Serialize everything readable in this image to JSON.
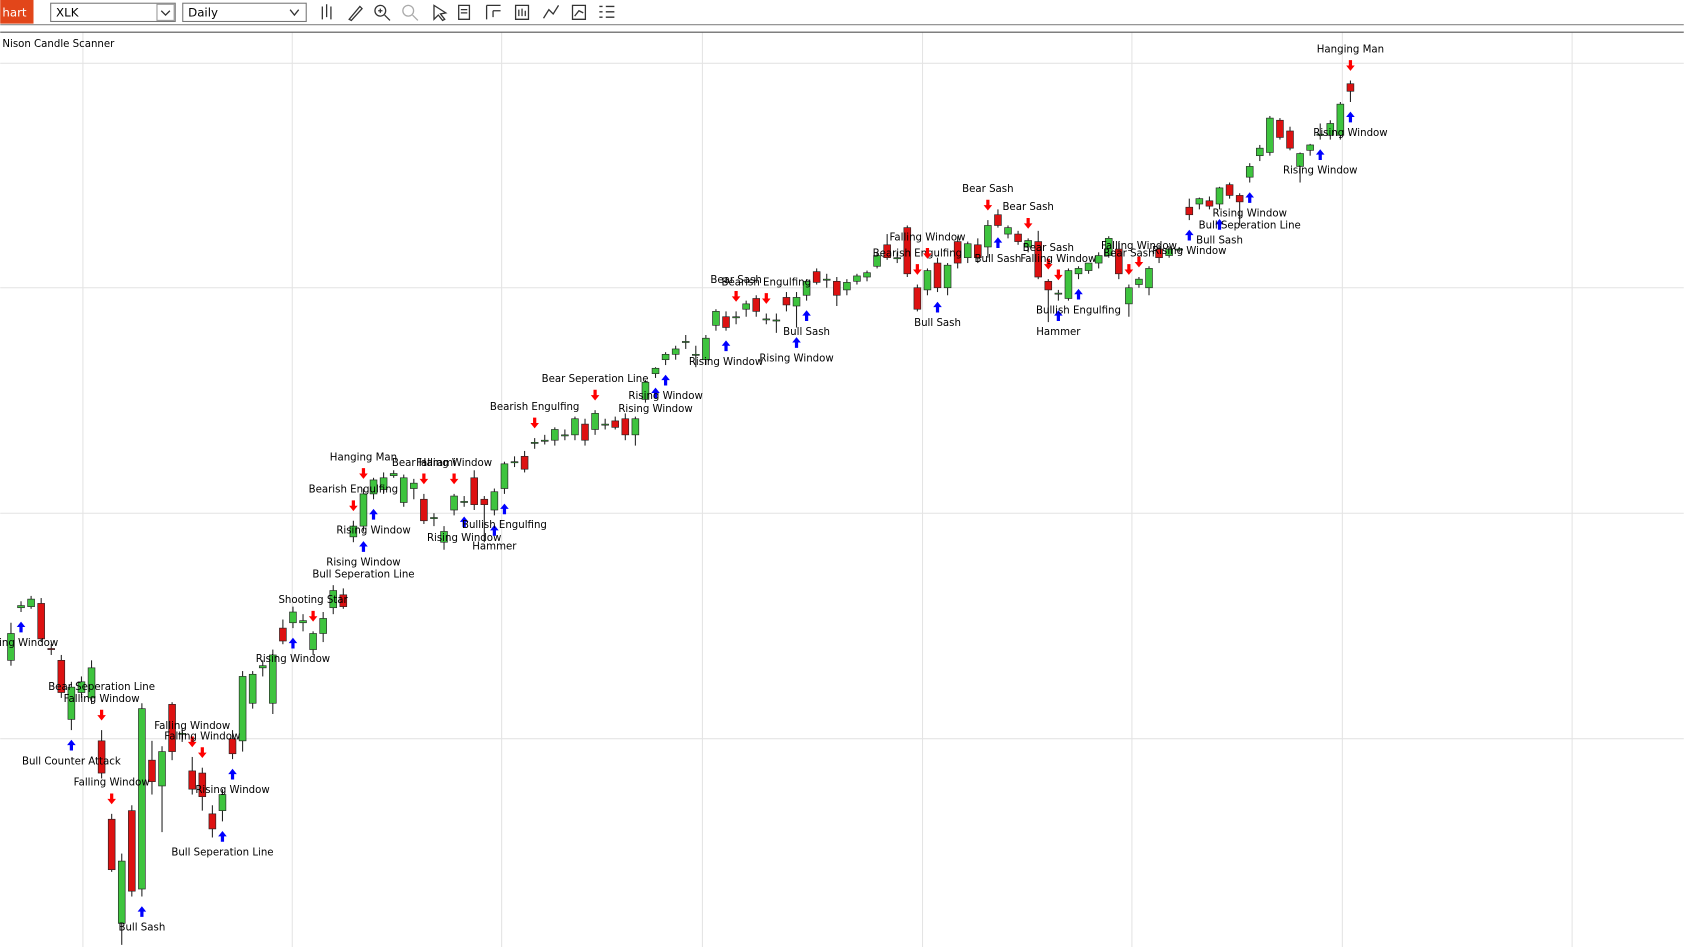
{
  "toolbar": {
    "tab": "hart",
    "symbol": "XLK",
    "interval": "Daily"
  },
  "chart_data": {
    "type": "candlestick",
    "title": "Nison Candle Scanner",
    "up_color": "#3ec43e",
    "down_color": "#dd1111",
    "up_arrow_color": "#0000ff",
    "down_arrow_color": "#ff0000",
    "ylim": [
      6.8,
      92
    ],
    "yticks": [
      26.2,
      47.2,
      68.2,
      89.1
    ],
    "grid": true,
    "candles": [
      [
        33.5,
        37.0,
        33.0,
        36.0
      ],
      [
        38.4,
        39.0,
        38.0,
        38.6
      ],
      [
        38.5,
        39.5,
        38.3,
        39.2
      ],
      [
        38.8,
        39.3,
        35.2,
        35.5
      ],
      [
        34.6,
        35.0,
        34.0,
        34.5
      ],
      [
        33.5,
        34.0,
        30.0,
        30.5
      ],
      [
        28.0,
        31.5,
        27.0,
        31.0
      ],
      [
        30.5,
        32.0,
        30.0,
        31.5
      ],
      [
        30.0,
        33.5,
        29.5,
        32.8
      ],
      [
        26.0,
        27.0,
        22.5,
        23.0
      ],
      [
        18.7,
        19.2,
        13.8,
        14.0
      ],
      [
        9.0,
        15.5,
        7.0,
        14.8
      ],
      [
        19.5,
        20.0,
        11.5,
        12.0
      ],
      [
        12.2,
        29.5,
        11.5,
        29.0
      ],
      [
        24.2,
        26.0,
        21.0,
        22.2
      ],
      [
        21.8,
        25.5,
        17.5,
        25.0
      ],
      [
        29.4,
        29.6,
        24.2,
        25.0
      ],
      [
        26.6,
        27.2,
        25.9,
        26.7
      ],
      [
        23.2,
        24.5,
        21.0,
        21.5
      ],
      [
        23.0,
        23.5,
        19.5,
        20.8
      ],
      [
        19.2,
        20.0,
        17.0,
        17.8
      ],
      [
        19.5,
        21.5,
        18.5,
        21.0
      ],
      [
        26.2,
        27.0,
        24.3,
        24.8
      ],
      [
        26.0,
        32.5,
        25.0,
        32.0
      ],
      [
        29.5,
        32.5,
        29.0,
        32.2
      ],
      [
        32.8,
        33.5,
        32.0,
        33.0
      ],
      [
        29.5,
        34.5,
        28.5,
        34.0
      ],
      [
        36.5,
        37.3,
        35.0,
        35.3
      ],
      [
        37.0,
        38.5,
        36.5,
        38.0
      ],
      [
        37.0,
        37.8,
        36.2,
        37.2
      ],
      [
        34.5,
        36.2,
        34.0,
        36.0
      ],
      [
        36.0,
        38.0,
        35.2,
        37.4
      ],
      [
        38.4,
        40.5,
        37.8,
        40.0
      ],
      [
        39.6,
        40.2,
        38.3,
        38.5
      ],
      [
        45.0,
        46.5,
        44.5,
        46.0
      ],
      [
        46.0,
        49.5,
        45.5,
        49.0
      ],
      [
        49.0,
        50.5,
        48.5,
        50.3
      ],
      [
        49.4,
        51.0,
        49.0,
        50.5
      ],
      [
        50.7,
        51.2,
        50.5,
        50.9
      ],
      [
        48.2,
        50.8,
        47.8,
        50.5
      ],
      [
        49.5,
        50.4,
        48.5,
        50.0
      ],
      [
        48.5,
        49.0,
        46.2,
        46.5
      ],
      [
        46.8,
        47.2,
        46.0,
        46.8
      ],
      [
        44.5,
        46.0,
        43.8,
        45.5
      ],
      [
        47.5,
        49.0,
        47.0,
        48.8
      ],
      [
        48.2,
        48.8,
        47.8,
        48.3
      ],
      [
        50.5,
        51.2,
        47.5,
        48.0
      ],
      [
        48.5,
        48.8,
        44.5,
        48.0
      ],
      [
        47.5,
        49.5,
        47.0,
        49.2
      ],
      [
        49.5,
        52.0,
        49.0,
        51.8
      ],
      [
        52.0,
        52.5,
        51.5,
        52.0
      ],
      [
        52.5,
        53.0,
        51.0,
        51.3
      ],
      [
        53.8,
        54.2,
        53.2,
        53.8
      ],
      [
        54.0,
        54.5,
        53.6,
        54.0
      ],
      [
        54.0,
        55.2,
        53.5,
        55.0
      ],
      [
        54.5,
        55.0,
        54.0,
        54.5
      ],
      [
        54.5,
        56.2,
        54.0,
        56.0
      ],
      [
        55.5,
        56.0,
        53.5,
        54.0
      ],
      [
        55.0,
        56.8,
        54.5,
        56.5
      ],
      [
        55.5,
        56.0,
        55.0,
        55.5
      ],
      [
        55.8,
        56.2,
        55.0,
        55.2
      ],
      [
        56.0,
        56.5,
        54.0,
        54.5
      ],
      [
        54.5,
        56.2,
        53.5,
        56.0
      ],
      [
        57.8,
        59.6,
        57.5,
        59.4
      ],
      [
        60.2,
        60.8,
        59.8,
        60.7
      ],
      [
        61.5,
        62.2,
        61.0,
        62.0
      ],
      [
        62.0,
        62.8,
        61.5,
        62.5
      ],
      [
        63.1,
        63.8,
        62.5,
        63.2
      ],
      [
        62.0,
        62.8,
        60.8,
        62.0
      ],
      [
        61.5,
        63.8,
        61.0,
        63.5
      ],
      [
        64.7,
        66.2,
        64.2,
        66.0
      ],
      [
        65.5,
        66.0,
        64.2,
        64.5
      ],
      [
        65.5,
        66.0,
        64.8,
        65.5
      ],
      [
        66.2,
        67.0,
        65.5,
        66.7
      ],
      [
        67.2,
        67.5,
        65.5,
        66.0
      ],
      [
        65.3,
        65.8,
        64.8,
        65.3
      ],
      [
        65.2,
        65.8,
        64.0,
        65.2
      ],
      [
        67.3,
        67.8,
        66.0,
        66.6
      ],
      [
        66.5,
        67.8,
        64.5,
        67.3
      ],
      [
        67.5,
        69.0,
        67.0,
        68.8
      ],
      [
        69.7,
        70.0,
        68.5,
        68.7
      ],
      [
        69.0,
        69.5,
        68.2,
        69.0
      ],
      [
        68.8,
        69.2,
        66.5,
        67.5
      ],
      [
        68.0,
        69.0,
        67.5,
        68.7
      ],
      [
        68.8,
        69.5,
        68.5,
        69.3
      ],
      [
        69.2,
        69.8,
        68.8,
        69.6
      ],
      [
        70.2,
        71.5,
        70.0,
        71.2
      ],
      [
        72.2,
        73.2,
        70.8,
        71.0
      ],
      [
        71.0,
        71.5,
        70.5,
        71.0
      ],
      [
        73.8,
        74.0,
        69.2,
        69.5
      ],
      [
        68.2,
        68.5,
        66.0,
        66.2
      ],
      [
        68.0,
        70.0,
        67.5,
        69.8
      ],
      [
        70.5,
        71.0,
        67.8,
        68.2
      ],
      [
        68.2,
        70.5,
        67.5,
        70.3
      ],
      [
        72.5,
        73.0,
        70.0,
        70.5
      ],
      [
        71.0,
        72.5,
        70.5,
        72.3
      ],
      [
        72.2,
        72.8,
        70.5,
        71.0
      ],
      [
        72.0,
        74.5,
        71.0,
        74.0
      ],
      [
        75.0,
        75.5,
        73.8,
        74.0
      ],
      [
        73.2,
        74.0,
        72.8,
        73.8
      ],
      [
        73.2,
        73.5,
        72.2,
        72.5
      ],
      [
        72.0,
        72.8,
        71.5,
        72.6
      ],
      [
        72.5,
        73.5,
        69.0,
        69.2
      ],
      [
        68.8,
        69.0,
        65.0,
        68.0
      ],
      [
        67.7,
        68.0,
        67.0,
        67.7
      ],
      [
        67.2,
        70.0,
        67.0,
        69.8
      ],
      [
        69.5,
        70.2,
        69.0,
        70.0
      ],
      [
        69.8,
        70.5,
        69.5,
        70.5
      ],
      [
        70.5,
        71.5,
        70.0,
        71.2
      ],
      [
        71.2,
        73.0,
        71.0,
        72.8
      ],
      [
        71.8,
        72.5,
        69.0,
        69.5
      ],
      [
        66.7,
        68.5,
        65.5,
        68.2
      ],
      [
        68.5,
        69.2,
        68.2,
        69.0
      ],
      [
        68.2,
        70.2,
        67.5,
        70.0
      ],
      [
        71.8,
        72.2,
        70.5,
        71.0
      ],
      [
        71.2,
        72.0,
        71.0,
        71.8
      ],
      [
        71.8,
        72.0,
        71.5,
        71.8
      ],
      [
        75.7,
        76.5,
        74.5,
        75.0
      ],
      [
        76.0,
        76.6,
        75.5,
        76.5
      ],
      [
        76.3,
        76.7,
        75.5,
        75.8
      ],
      [
        76.0,
        77.6,
        75.5,
        77.5
      ],
      [
        77.8,
        78.0,
        76.5,
        76.8
      ],
      [
        76.8,
        77.0,
        74.0,
        76.2
      ],
      [
        78.5,
        79.8,
        78.0,
        79.5
      ],
      [
        80.5,
        81.5,
        80.0,
        81.2
      ],
      [
        80.8,
        84.2,
        80.5,
        84.0
      ],
      [
        83.8,
        84.0,
        82.0,
        82.2
      ],
      [
        82.8,
        83.2,
        81.0,
        81.2
      ],
      [
        79.5,
        80.8,
        78.0,
        80.7
      ],
      [
        81.0,
        81.6,
        80.5,
        81.5
      ],
      [
        82.5,
        83.5,
        82.0,
        82.5
      ],
      [
        82.4,
        83.8,
        82.0,
        83.5
      ],
      [
        82.4,
        85.5,
        82.0,
        85.3
      ],
      [
        87.2,
        87.5,
        85.5,
        86.5
      ]
    ],
    "annotations": [
      {
        "index": 1,
        "text": "Rising Window",
        "arrow": "up"
      },
      {
        "index": 6,
        "text": "Bull Counter Attack",
        "arrow": "up"
      },
      {
        "index": 9,
        "text": "Falling Window",
        "arrow": "down"
      },
      {
        "index": 9,
        "text": "Bear Seperation Line",
        "arrow": "down"
      },
      {
        "index": 10,
        "text": "Falling Window",
        "arrow": "down"
      },
      {
        "index": 13,
        "text": "Bull Sash",
        "arrow": "up"
      },
      {
        "index": 18,
        "text": "Falling Window",
        "arrow": "down"
      },
      {
        "index": 19,
        "text": "Falling Window",
        "arrow": "down"
      },
      {
        "index": 22,
        "text": "Rising Window",
        "arrow": "up"
      },
      {
        "index": 21,
        "text": "Bull Seperation Line",
        "arrow": "up"
      },
      {
        "index": 28,
        "text": "Rising Window",
        "arrow": "up"
      },
      {
        "index": 30,
        "text": "Shooting Star",
        "arrow": "down"
      },
      {
        "index": 34,
        "text": "Bearish Engulfing",
        "arrow": "down"
      },
      {
        "index": 35,
        "text": "Rising Window",
        "arrow": "up"
      },
      {
        "index": 35,
        "text": "Bull Seperation Line",
        "arrow": "up"
      },
      {
        "index": 35,
        "text": "Hanging Man",
        "arrow": "down"
      },
      {
        "index": 36,
        "text": "Rising Window",
        "arrow": "up"
      },
      {
        "index": 41,
        "text": "Bear Harami",
        "arrow": "down"
      },
      {
        "index": 44,
        "text": "Falling Window",
        "arrow": "down"
      },
      {
        "index": 45,
        "text": "Rising Window",
        "arrow": "up"
      },
      {
        "index": 48,
        "text": "Hammer",
        "arrow": "up"
      },
      {
        "index": 49,
        "text": "Bullish Engulfing",
        "arrow": "up"
      },
      {
        "index": 52,
        "text": "Bearish Engulfing",
        "arrow": "down"
      },
      {
        "index": 58,
        "text": "Bear Seperation Line",
        "arrow": "down"
      },
      {
        "index": 64,
        "text": "Rising Window",
        "arrow": "up"
      },
      {
        "index": 65,
        "text": "Rising Window",
        "arrow": "up"
      },
      {
        "index": 71,
        "text": "Rising Window",
        "arrow": "up"
      },
      {
        "index": 72,
        "text": "Bear Sash",
        "arrow": "down"
      },
      {
        "index": 75,
        "text": "Bearish Engulfing",
        "arrow": "down"
      },
      {
        "index": 78,
        "text": "Rising Window",
        "arrow": "up"
      },
      {
        "index": 79,
        "text": "Bull Sash",
        "arrow": "up"
      },
      {
        "index": 90,
        "text": "Bearish Engulfing",
        "arrow": "down"
      },
      {
        "index": 91,
        "text": "Falling Window",
        "arrow": "down"
      },
      {
        "index": 92,
        "text": "Bull Sash",
        "arrow": "up"
      },
      {
        "index": 97,
        "text": "Bear Sash",
        "arrow": "down"
      },
      {
        "index": 98,
        "text": "Bull Sash",
        "arrow": "up"
      },
      {
        "index": 101,
        "text": "Bear Sash",
        "arrow": "down"
      },
      {
        "index": 103,
        "text": "Bear Sash",
        "arrow": "down"
      },
      {
        "index": 104,
        "text": "Falling Window",
        "arrow": "down"
      },
      {
        "index": 104,
        "text": "Hammer",
        "arrow": "up"
      },
      {
        "index": 106,
        "text": "Bullish Engulfing",
        "arrow": "up"
      },
      {
        "index": 111,
        "text": "Bear Sash",
        "arrow": "down"
      },
      {
        "index": 112,
        "text": "Falling Window",
        "arrow": "down"
      },
      {
        "index": 117,
        "text": "Rising Window",
        "arrow": "up"
      },
      {
        "index": 120,
        "text": "Bull Sash",
        "arrow": "up"
      },
      {
        "index": 123,
        "text": "Rising Window",
        "arrow": "up"
      },
      {
        "index": 123,
        "text": "Bull Seperation Line",
        "arrow": "up"
      },
      {
        "index": 130,
        "text": "Rising Window",
        "arrow": "up"
      },
      {
        "index": 133,
        "text": "Rising Window",
        "arrow": "up"
      },
      {
        "index": 133,
        "text": "Hanging Man",
        "arrow": "down"
      }
    ]
  }
}
